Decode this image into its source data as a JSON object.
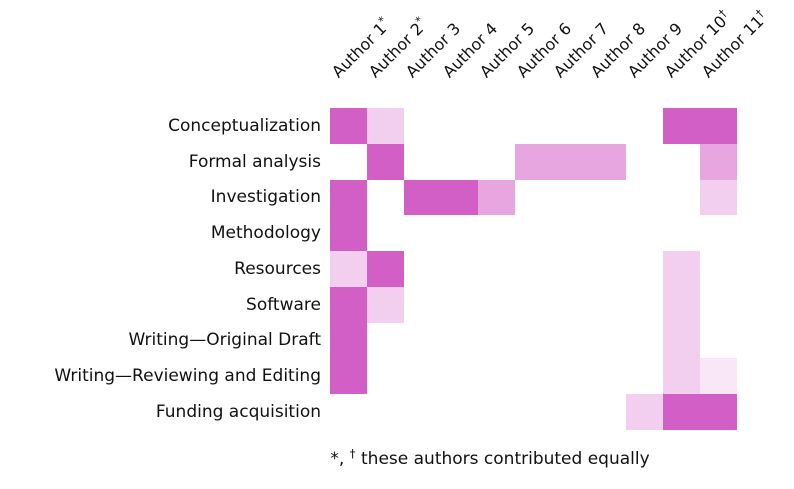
{
  "chart_data": {
    "type": "heatmap",
    "columns": [
      "Author 1*",
      "Author 2*",
      "Author 3",
      "Author 4",
      "Author 5",
      "Author 6",
      "Author 7",
      "Author 8",
      "Author 9",
      "Author 10†",
      "Author 11†"
    ],
    "rows": [
      "Conceptualization",
      "Formal analysis",
      "Investigation",
      "Methodology",
      "Resources",
      "Software",
      "Writing—Original Draft",
      "Writing—Reviewing and Editing",
      "Funding acquisition"
    ],
    "values": [
      [
        4,
        2,
        0,
        0,
        0,
        0,
        0,
        0,
        0,
        4,
        4
      ],
      [
        0,
        4,
        0,
        0,
        0,
        3,
        3,
        3,
        0,
        0,
        3
      ],
      [
        4,
        0,
        4,
        4,
        3,
        0,
        0,
        0,
        0,
        0,
        2
      ],
      [
        4,
        0,
        0,
        0,
        0,
        0,
        0,
        0,
        0,
        0,
        0
      ],
      [
        2,
        4,
        0,
        0,
        0,
        0,
        0,
        0,
        0,
        2,
        0
      ],
      [
        4,
        2,
        0,
        0,
        0,
        0,
        0,
        0,
        0,
        2,
        0
      ],
      [
        4,
        0,
        0,
        0,
        0,
        0,
        0,
        0,
        0,
        2,
        0
      ],
      [
        4,
        0,
        0,
        0,
        0,
        0,
        0,
        0,
        0,
        2,
        1
      ],
      [
        0,
        0,
        0,
        0,
        0,
        0,
        0,
        0,
        2,
        4,
        4
      ]
    ],
    "colors": {
      "0": "#ffffff",
      "1": "#f9e6f6",
      "2": "#f2cfee",
      "3": "#e8a6e0",
      "4": "#d25fc5"
    },
    "caption": "*, † these authors contributed equally"
  },
  "authors": [
    {
      "name": "Author 1",
      "marker": "*"
    },
    {
      "name": "Author 2",
      "marker": "*"
    },
    {
      "name": "Author 3",
      "marker": ""
    },
    {
      "name": "Author 4",
      "marker": ""
    },
    {
      "name": "Author 5",
      "marker": ""
    },
    {
      "name": "Author 6",
      "marker": ""
    },
    {
      "name": "Author 7",
      "marker": ""
    },
    {
      "name": "Author 8",
      "marker": ""
    },
    {
      "name": "Author 9",
      "marker": ""
    },
    {
      "name": "Author 10",
      "marker": "†"
    },
    {
      "name": "Author 11",
      "marker": "†"
    }
  ],
  "caption": {
    "lead": "*, ",
    "dagger": "†",
    "text": "these authors contributed equally"
  }
}
